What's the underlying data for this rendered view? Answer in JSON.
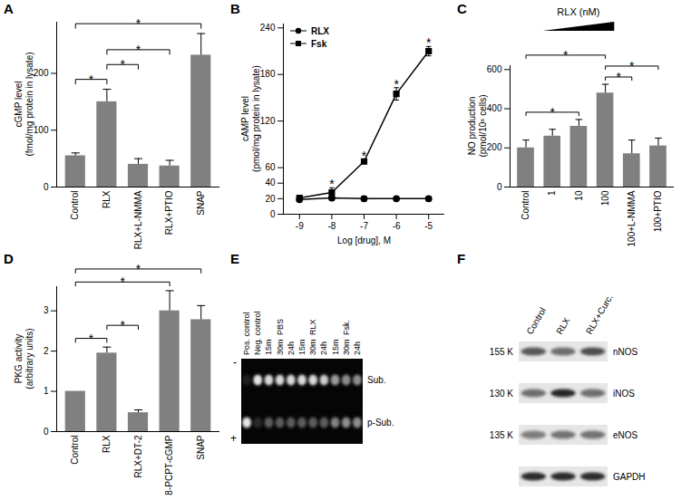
{
  "chart_data": [
    {
      "panel": "A",
      "type": "bar",
      "categories": [
        "Control",
        "RLX",
        "RLX+L-NMMA",
        "RLX+PTIO",
        "SNAP"
      ],
      "values": [
        55,
        150,
        40,
        37,
        232
      ],
      "errors": [
        5,
        22,
        10,
        10,
        38
      ],
      "color": "#808080",
      "ylabel": [
        "cGMP level",
        "(fmol/mg protein in lysate)"
      ],
      "ylim": [
        0,
        290
      ],
      "yticks": [
        0,
        100,
        200
      ],
      "significance": [
        {
          "from": "Control",
          "to": "RLX",
          "label": "*"
        },
        {
          "from": "RLX",
          "to": "RLX+L-NMMA",
          "label": "*"
        },
        {
          "from": "RLX",
          "to": "RLX+PTIO",
          "label": "*"
        },
        {
          "from": "Control",
          "to": "SNAP",
          "label": "*"
        }
      ]
    },
    {
      "panel": "B",
      "type": "line",
      "x": [
        -9,
        -8,
        -7,
        -6,
        -5
      ],
      "series": [
        {
          "name": "RLX",
          "color": "#000000",
          "marker": "circle",
          "values": [
            19,
            21,
            20,
            20,
            20
          ],
          "errors": [
            2,
            3,
            3,
            2,
            3
          ]
        },
        {
          "name": "Fsk",
          "color": "#000000",
          "marker": "square",
          "values": [
            21,
            28,
            68,
            155,
            210
          ],
          "errors": [
            2,
            6,
            3,
            8,
            6
          ]
        }
      ],
      "xlabel": "Log [drug], M",
      "ylabel": [
        "cAMP level",
        "(pmol/mg protein in lysate)"
      ],
      "xlim": [
        -9.5,
        -4.5
      ],
      "xticks": [
        -9,
        -8,
        -7,
        -6,
        -5
      ],
      "ylim": [
        0,
        245
      ],
      "yticks": [
        0,
        20,
        40,
        60,
        120,
        180,
        240
      ],
      "legend": "top-left",
      "significance": {
        "series": "Fsk",
        "x": [
          -8,
          -7,
          -6,
          -5
        ],
        "label": "*"
      }
    },
    {
      "panel": "C",
      "type": "bar",
      "categories": [
        "Control",
        "1",
        "10",
        "100",
        "100+L-NMMA",
        "100+PTIO"
      ],
      "values": [
        200,
        260,
        310,
        480,
        170,
        210
      ],
      "errors": [
        40,
        35,
        35,
        45,
        70,
        40
      ],
      "color": "#808080",
      "ylabel": [
        "NO production",
        "(pmol/10⁶ cells)"
      ],
      "ylim": [
        0,
        620
      ],
      "yticks": [
        0,
        200,
        400,
        600
      ],
      "group_label": {
        "label": "RLX (nM)",
        "from": "1",
        "to": "100"
      },
      "significance": [
        {
          "from": "Control",
          "to": "10",
          "label": "*"
        },
        {
          "from": "Control",
          "to": "100",
          "label": "*"
        },
        {
          "from": "100",
          "to": "100+L-NMMA",
          "label": "*"
        },
        {
          "from": "100",
          "to": "100+PTIO",
          "label": "*"
        }
      ]
    },
    {
      "panel": "D",
      "type": "bar",
      "categories": [
        "Control",
        "RLX",
        "RLX+DT-2",
        "8-PCPT-cGMP",
        "SNAP"
      ],
      "values": [
        1.0,
        1.95,
        0.47,
        3.0,
        2.78
      ],
      "errors": [
        0,
        0.15,
        0.07,
        0.5,
        0.35
      ],
      "color": "#808080",
      "ylabel": [
        "PKG activity",
        "(arbitrary units)"
      ],
      "ylim": [
        0,
        3.6
      ],
      "yticks": [
        0,
        1,
        2,
        3
      ],
      "significance": [
        {
          "from": "Control",
          "to": "RLX",
          "label": "*"
        },
        {
          "from": "RLX",
          "to": "RLX+DT-2",
          "label": "*"
        },
        {
          "from": "Control",
          "to": "8-PCPT-cGMP",
          "label": "*"
        },
        {
          "from": "Control",
          "to": "SNAP",
          "label": "*"
        }
      ]
    },
    {
      "panel": "E",
      "type": "gel",
      "lanes": [
        {
          "label": "Pos. control"
        },
        {
          "label": "Neg. control"
        },
        {
          "group": "PBS",
          "label": "15m"
        },
        {
          "group": "PBS",
          "label": "30m"
        },
        {
          "group": "PBS",
          "label": "24h"
        },
        {
          "group": "RLX",
          "label": "15m"
        },
        {
          "group": "RLX",
          "label": "30m"
        },
        {
          "group": "RLX",
          "label": "24h"
        },
        {
          "group": "Fsk.",
          "label": "15m"
        },
        {
          "group": "Fsk.",
          "label": "30m"
        },
        {
          "group": "Fsk.",
          "label": "24h"
        }
      ],
      "rows": [
        {
          "label": "Sub.",
          "intensities": [
            0.1,
            0.9,
            0.85,
            0.85,
            0.85,
            0.85,
            0.85,
            0.8,
            0.6,
            0.55,
            0.55
          ]
        },
        {
          "label": "p-Sub.",
          "intensities": [
            0.9,
            0.15,
            0.35,
            0.35,
            0.35,
            0.35,
            0.35,
            0.35,
            0.5,
            0.55,
            0.55
          ]
        }
      ],
      "electrodes": [
        "-",
        "+"
      ]
    },
    {
      "panel": "F",
      "type": "western_blot",
      "lanes": [
        "Control",
        "RLX",
        "RLX+Curc."
      ],
      "rows": [
        {
          "label": "nNOS",
          "mw": "155 K",
          "intensities": [
            0.7,
            0.6,
            0.75
          ]
        },
        {
          "label": "iNOS",
          "mw": "130 K",
          "intensities": [
            0.6,
            0.95,
            0.6
          ]
        },
        {
          "label": "eNOS",
          "mw": "135 K",
          "intensities": [
            0.5,
            0.55,
            0.55
          ]
        },
        {
          "label": "GAPDH",
          "intensities": [
            0.9,
            0.9,
            0.9
          ]
        }
      ]
    }
  ]
}
